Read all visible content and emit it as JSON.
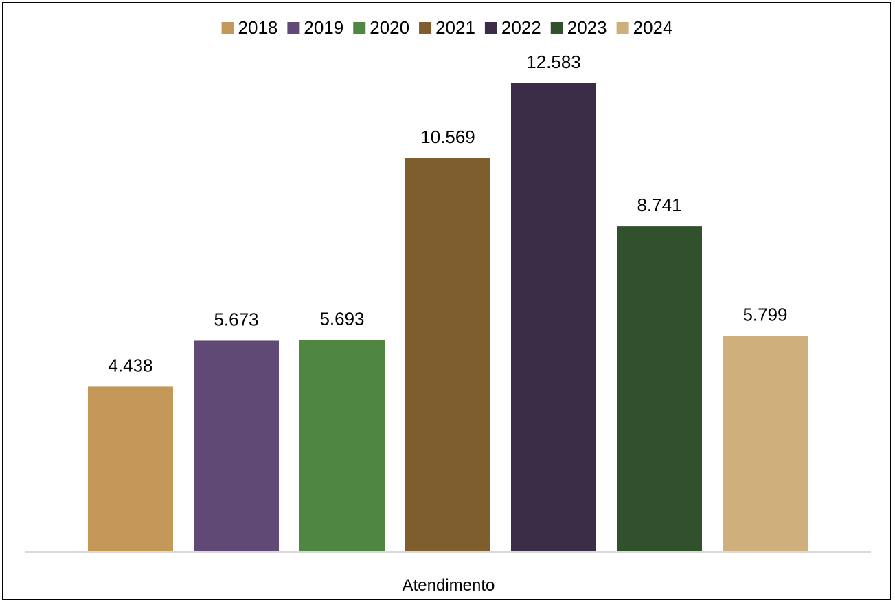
{
  "chart_data": {
    "type": "bar",
    "title": "",
    "xlabel": "",
    "ylabel": "",
    "categories": [
      "Atendimento"
    ],
    "series": [
      {
        "name": "2018",
        "values": [
          4438
        ],
        "label": "4.438",
        "color": "#C39859"
      },
      {
        "name": "2019",
        "values": [
          5673
        ],
        "label": "5.673",
        "color": "#604975"
      },
      {
        "name": "2020",
        "values": [
          5693
        ],
        "label": "5.693",
        "color": "#4F8742"
      },
      {
        "name": "2021",
        "values": [
          10569
        ],
        "label": "10.569",
        "color": "#7E5E2F"
      },
      {
        "name": "2022",
        "values": [
          12583
        ],
        "label": "12.583",
        "color": "#3B2C47"
      },
      {
        "name": "2023",
        "values": [
          8741
        ],
        "label": "8.741",
        "color": "#30512B"
      },
      {
        "name": "2024",
        "values": [
          5799
        ],
        "label": "5.799",
        "color": "#CFAF7B"
      }
    ],
    "ylim": [
      0,
      14000
    ],
    "grid": false,
    "legend_position": "top",
    "axis_line_color": "#D9D9D9"
  }
}
